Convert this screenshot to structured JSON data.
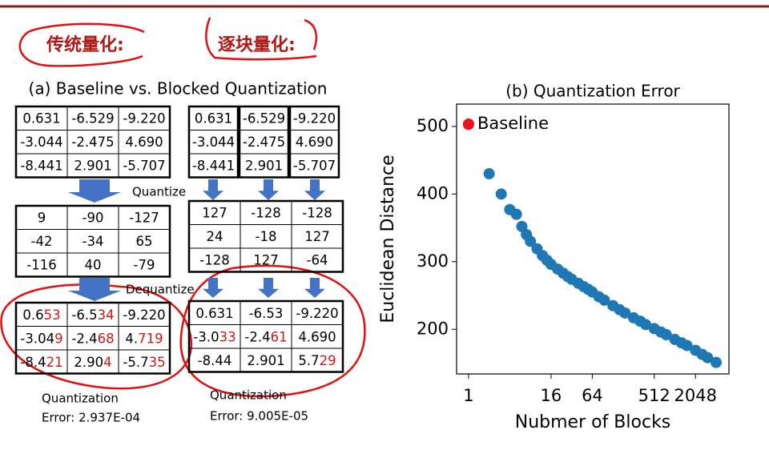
{
  "header": {
    "left_label": "传统量化:",
    "right_label": "逐块量化:"
  },
  "panel_a": {
    "title": "(a) Baseline vs. Blocked Quantization",
    "quantize_label": "Quantize",
    "dequantize_label": "Dequantize",
    "baseline": {
      "original": [
        [
          "0.631",
          "-6.529",
          "-9.220"
        ],
        [
          "-3.044",
          "-2.475",
          "4.690"
        ],
        [
          "-8.441",
          "2.901",
          "-5.707"
        ]
      ],
      "quantized": [
        [
          "9",
          "-90",
          "-127"
        ],
        [
          "-42",
          "-34",
          "65"
        ],
        [
          "-116",
          "40",
          "-79"
        ]
      ],
      "dequantized": [
        [
          [
            "0.6",
            "53"
          ],
          [
            "-6.5",
            "34"
          ],
          [
            "-9.220"
          ]
        ],
        [
          [
            "-3.04",
            "9"
          ],
          [
            "-2.4",
            "68"
          ],
          [
            "4.",
            "719"
          ]
        ],
        [
          [
            "-8.4",
            "21"
          ],
          [
            "2.90",
            "4"
          ],
          [
            "-5.7",
            "35"
          ]
        ]
      ],
      "error_lines": [
        "Quantization",
        "Error: 2.937E-04"
      ]
    },
    "blocked": {
      "original": [
        [
          "0.631",
          "-6.529",
          "-9.220"
        ],
        [
          "-3.044",
          "-2.475",
          "4.690"
        ],
        [
          "-8.441",
          "2.901",
          "-5.707"
        ]
      ],
      "quantized": [
        [
          "127",
          "-128",
          "-128"
        ],
        [
          "24",
          "-18",
          "127"
        ],
        [
          "-128",
          "127",
          "-64"
        ]
      ],
      "dequantized": [
        [
          [
            "0.631"
          ],
          [
            "-6.53"
          ],
          [
            "-9.220"
          ]
        ],
        [
          [
            "-3.0",
            "33"
          ],
          [
            "-2.4",
            "61"
          ],
          [
            "4.690"
          ]
        ],
        [
          [
            "-8.44"
          ],
          [
            "2.901"
          ],
          [
            "5.7",
            "29"
          ]
        ]
      ],
      "error_lines": [
        "Quantization",
        "Error: 9.005E-05"
      ]
    }
  },
  "chart_data": {
    "type": "scatter",
    "title": "(b) Quantization Error",
    "x_label": "Nubmer of Blocks",
    "y_label": "Euclidean Distance",
    "x_log_base": 2,
    "xlim": [
      0.67,
      6300
    ],
    "xticks": [
      1,
      16,
      64,
      512,
      2048
    ],
    "ylim": [
      134,
      533
    ],
    "yticks": [
      200,
      300,
      400,
      500
    ],
    "legend": "upper left",
    "series": [
      {
        "name": "Baseline",
        "color": "#e8141b",
        "x": [
          1
        ],
        "values": [
          503
        ]
      },
      {
        "color": "#1f77b4",
        "x": [
          2,
          3,
          4,
          5,
          6,
          7,
          8,
          10,
          12,
          14,
          16,
          20,
          24,
          28,
          32,
          40,
          48,
          56,
          64,
          80,
          96,
          128,
          160,
          192,
          256,
          320,
          384,
          512,
          640,
          768,
          1024,
          1280,
          1536,
          2048,
          2560,
          3072,
          4096
        ],
        "values": [
          430,
          400,
          377,
          370,
          352,
          340,
          330,
          319,
          309,
          302,
          296,
          289,
          283,
          278,
          274,
          268,
          263,
          259,
          255,
          248,
          243,
          235,
          229,
          224,
          217,
          212,
          207,
          201,
          196,
          192,
          185,
          180,
          176,
          169,
          163,
          158,
          151
        ]
      }
    ]
  }
}
